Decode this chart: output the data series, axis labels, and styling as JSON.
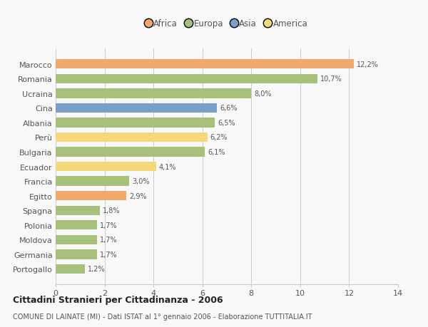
{
  "categories": [
    "Marocco",
    "Romania",
    "Ucraina",
    "Cina",
    "Albania",
    "Perù",
    "Bulgaria",
    "Ecuador",
    "Francia",
    "Egitto",
    "Spagna",
    "Polonia",
    "Moldova",
    "Germania",
    "Portogallo"
  ],
  "values": [
    12.2,
    10.7,
    8.0,
    6.6,
    6.5,
    6.2,
    6.1,
    4.1,
    3.0,
    2.9,
    1.8,
    1.7,
    1.7,
    1.7,
    1.2
  ],
  "labels": [
    "12,2%",
    "10,7%",
    "8,0%",
    "6,6%",
    "6,5%",
    "6,2%",
    "6,1%",
    "4,1%",
    "3,0%",
    "2,9%",
    "1,8%",
    "1,7%",
    "1,7%",
    "1,7%",
    "1,2%"
  ],
  "continents": [
    "Africa",
    "Europa",
    "Europa",
    "Asia",
    "Europa",
    "America",
    "Europa",
    "America",
    "Europa",
    "Africa",
    "Europa",
    "Europa",
    "Europa",
    "Europa",
    "Europa"
  ],
  "continent_colors": {
    "Africa": "#F2A96E",
    "Europa": "#A8C17A",
    "Asia": "#7B9FCC",
    "America": "#F5D87A"
  },
  "legend_order": [
    "Africa",
    "Europa",
    "Asia",
    "America"
  ],
  "title": "Cittadini Stranieri per Cittadinanza - 2006",
  "subtitle": "COMUNE DI LAINATE (MI) - Dati ISTAT al 1° gennaio 2006 - Elaborazione TUTTITALIA.IT",
  "xlim": [
    0,
    14
  ],
  "xticks": [
    0,
    2,
    4,
    6,
    8,
    10,
    12,
    14
  ],
  "background_color": "#f9f9f9",
  "grid_color": "#cccccc",
  "bar_height": 0.65
}
